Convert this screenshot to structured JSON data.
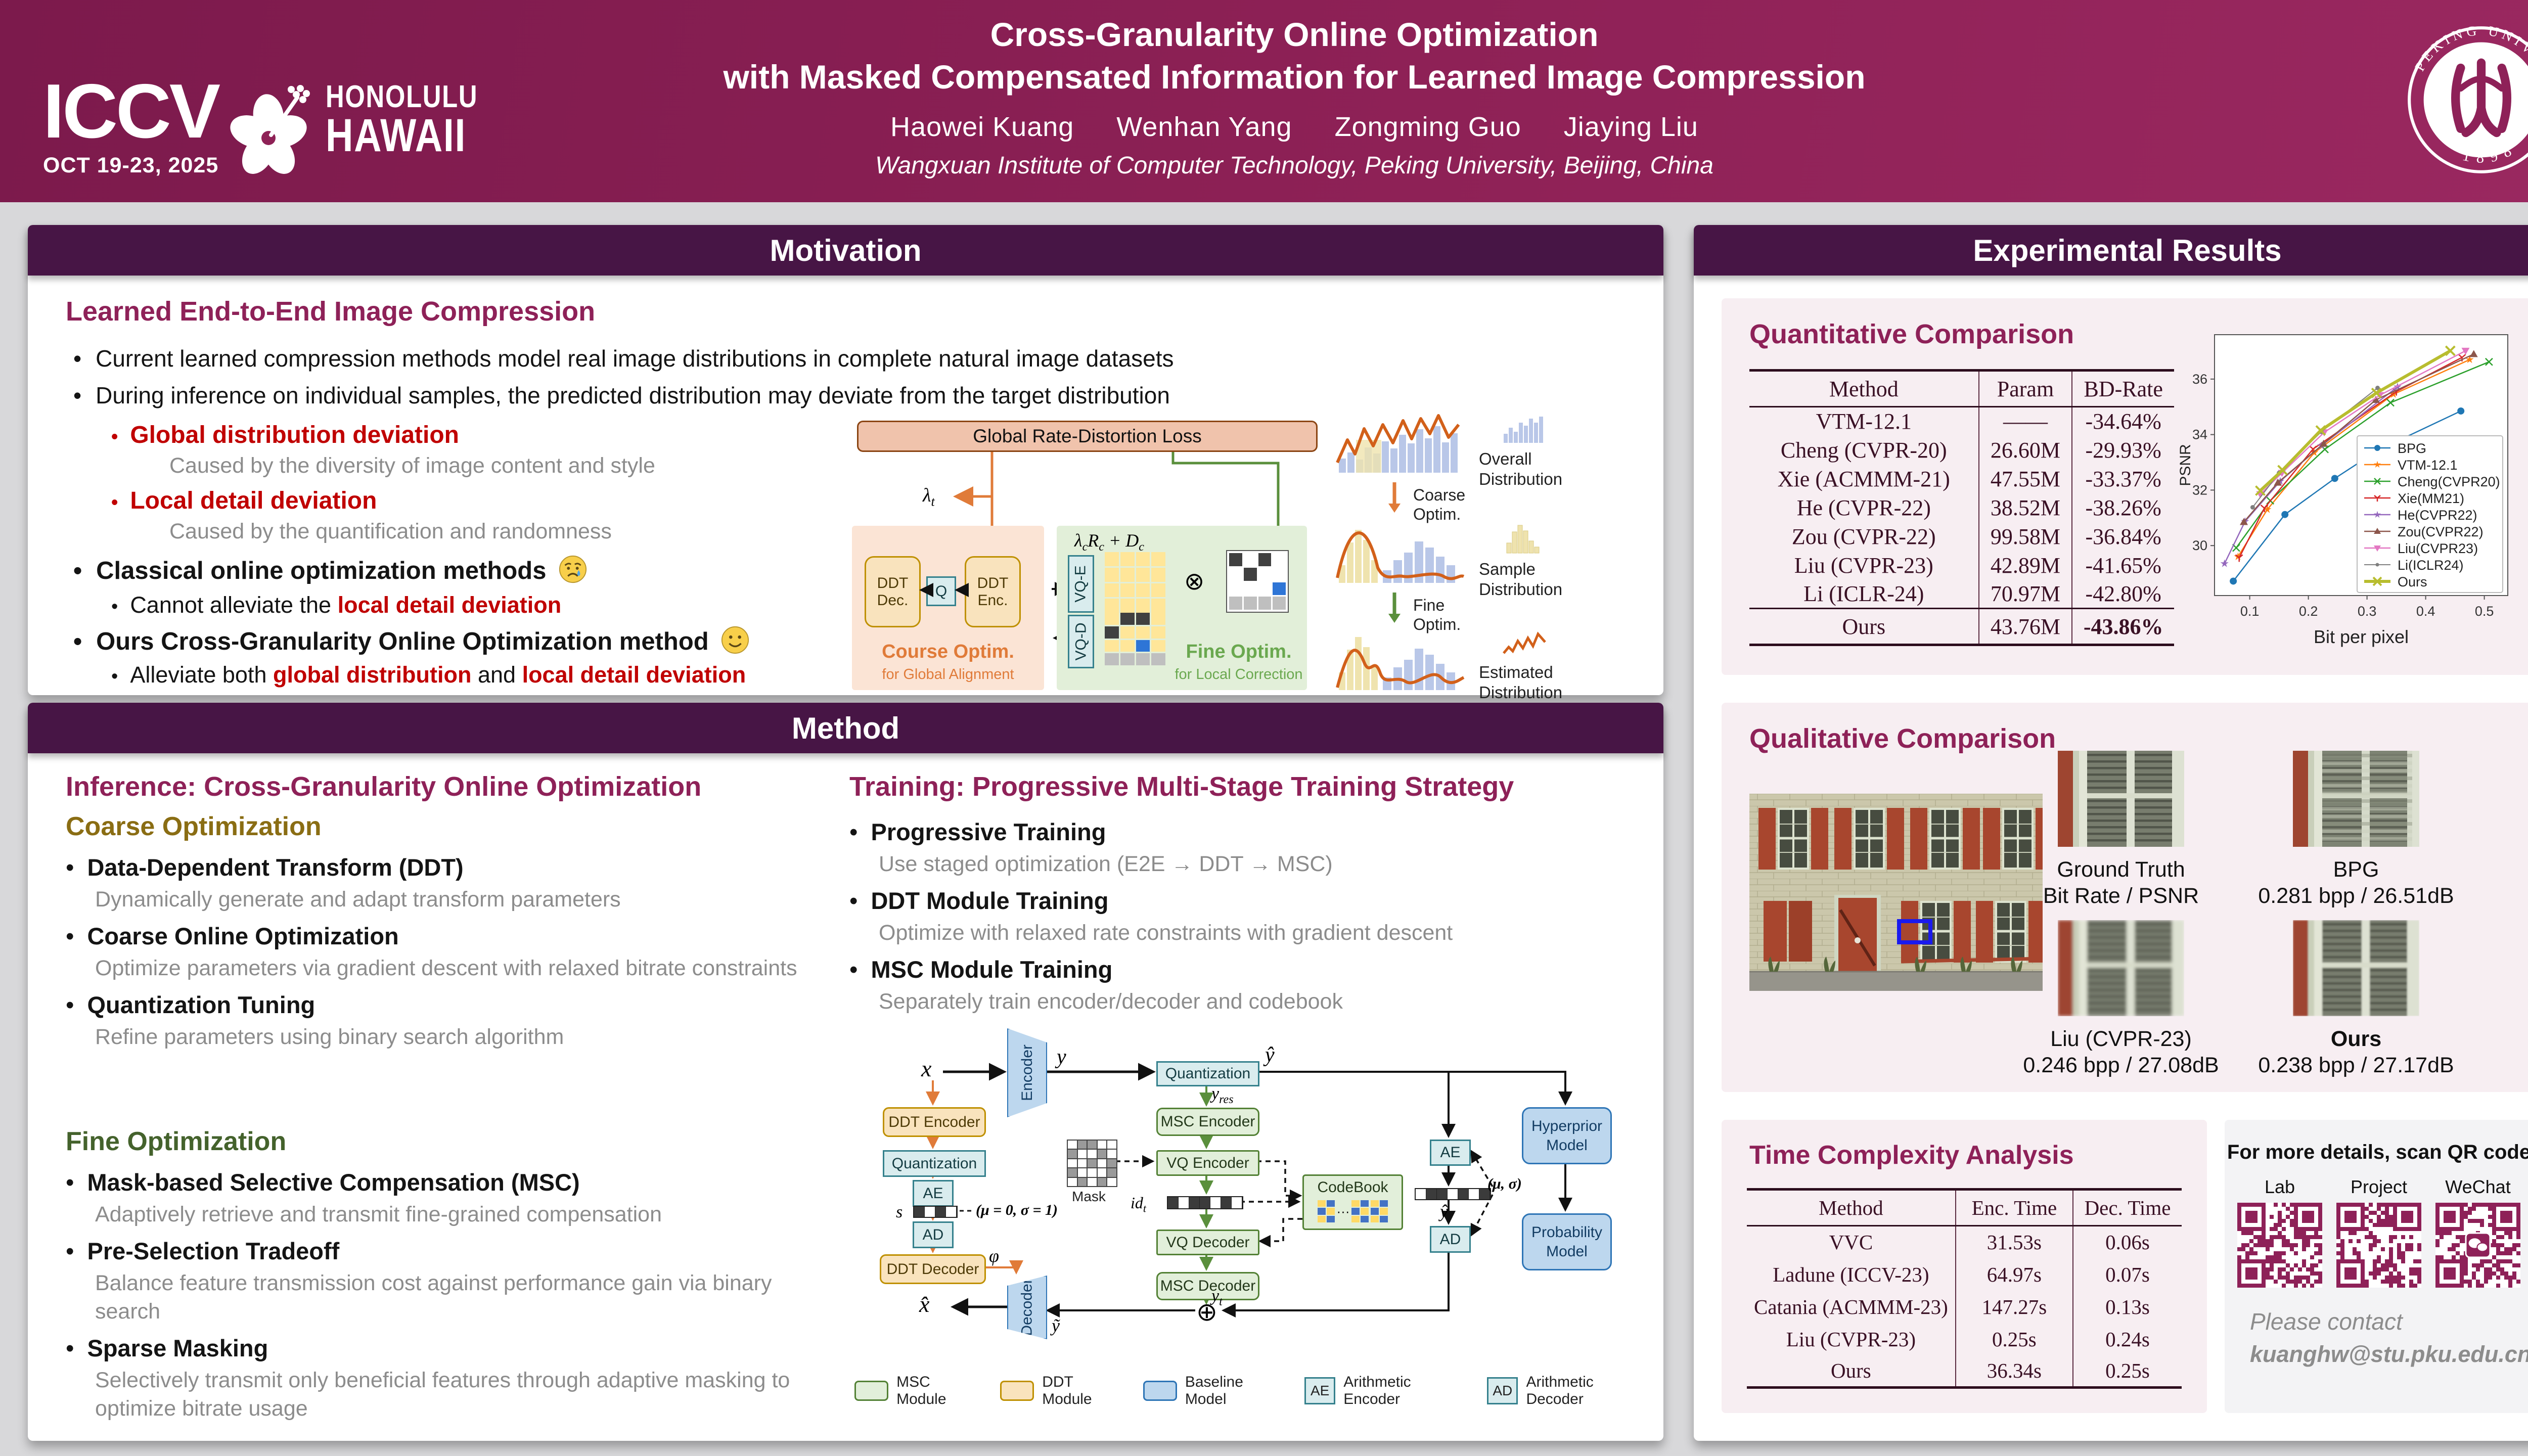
{
  "colors": {
    "accent": "#8e2158",
    "section_header": "#471545",
    "red": "#c00000",
    "olive": "#8a6d13",
    "green": "#44622c",
    "card_pink": "#f7eef2"
  },
  "header": {
    "title_line1": "Cross-Granularity Online Optimization",
    "title_line2": "with Masked Compensated Information for Learned Image Compression",
    "authors": [
      "Haowei Kuang",
      "Wenhan Yang",
      "Zongming Guo",
      "Jiaying Liu"
    ],
    "affiliation": "Wangxuan Institute of Computer Technology, Peking University, Beijing, China",
    "iccv": {
      "name": "ICCV",
      "dates": "OCT 19-23, 2025",
      "city1": "HONOLULU",
      "city2": "HAWAII"
    },
    "pku": {
      "ring_text": "PEKING UNIVERSITY",
      "year": "1898"
    }
  },
  "motivation": {
    "header": "Motivation",
    "section_title": "Learned End-to-End Image Compression",
    "b1": "Current learned compression methods model real image distributions in complete natural image datasets",
    "b2": "During inference on individual samples, the predicted distribution may deviate from the target distribution",
    "global_dev": {
      "title": "Global distribution deviation",
      "sub": "Caused by the diversity of image content and style"
    },
    "local_dev": {
      "title": "Local detail deviation",
      "sub": "Caused by the quantification and randomness"
    },
    "classical": {
      "title": "Classical online optimization methods",
      "sub_pre": "Cannot alleviate the ",
      "sub_red": "local detail deviation"
    },
    "ours": {
      "title": "Ours Cross-Granularity Online Optimization method",
      "sub_pre": "Alleviate both ",
      "sub_red1": "global distribution",
      "sub_mid": " and ",
      "sub_red2": "local detail deviation"
    },
    "diagram": {
      "loss": "Global Rate-Distortion Loss",
      "lambda_base": "λ",
      "lambda_sub": "t",
      "f_l1": "λ",
      "f_s1": "c",
      "f_l2": "R",
      "f_s2": "c",
      "f_mid": " + ",
      "f_l3": "D",
      "f_s3": "c",
      "ddt_dec": "DDT Dec.",
      "q": "Q",
      "ddt_enc": "DDT Enc.",
      "vqe": "VQ-E",
      "vqd": "VQ-D",
      "coarse_label": "Course Optim.",
      "coarse_sub": "for Global Alignment",
      "fine_label": "Fine Optim.",
      "fine_sub": "for Local Correction",
      "flow_overall": "Overall Distribution",
      "flow_coarse": "Coarse Optim.",
      "flow_sample": "Sample Distribution",
      "flow_fine": "Fine Optim.",
      "flow_estimated": "Estimated Distribution"
    }
  },
  "method": {
    "header": "Method",
    "inference": {
      "title": "Inference: Cross-Granularity Online Optimization",
      "coarse": {
        "title": "Coarse Optimization",
        "items": [
          {
            "b": "Data-Dependent Transform (DDT)",
            "s": "Dynamically generate and adapt transform parameters"
          },
          {
            "b": "Coarse Online Optimization",
            "s": "Optimize parameters via gradient descent with relaxed bitrate constraints"
          },
          {
            "b": "Quantization Tuning",
            "s": "Refine parameters using binary search algorithm"
          }
        ]
      },
      "fine": {
        "title": "Fine Optimization",
        "items": [
          {
            "b": "Mask-based Selective Compensation (MSC)",
            "s": "Adaptively retrieve and transmit fine-grained compensation"
          },
          {
            "b": "Pre-Selection Tradeoff",
            "s": "Balance feature transmission cost against performance gain via binary search"
          },
          {
            "b": "Sparse Masking",
            "s": "Selectively transmit only beneficial features through adaptive masking to optimize bitrate usage"
          }
        ]
      }
    },
    "training": {
      "title": "Training: Progressive Multi-Stage Training Strategy",
      "items": [
        {
          "b": "Progressive Training",
          "s": "Use staged optimization (E2E → DDT → MSC)"
        },
        {
          "b": "DDT Module Training",
          "s": "Optimize with relaxed rate constraints with gradient descent"
        },
        {
          "b": "MSC Module Training",
          "s": "Separately train encoder/decoder and codebook"
        }
      ],
      "diagram": {
        "x": "x",
        "y": "y",
        "yhat": "ŷ",
        "yres_base": "y",
        "yres_sub": "res",
        "encoder": "Encoder",
        "decoder": "Decoder",
        "quantization": "Quantization",
        "quantization2": "Quantization",
        "msc_enc": "MSC Encoder",
        "vq_enc": "VQ Encoder",
        "vq_dec": "VQ Decoder",
        "msc_dec": "MSC Decoder",
        "mask": "Mask",
        "id_base": "id",
        "id_sub": "t",
        "codebook": "CodeBook",
        "ddt_enc": "DDT Encoder",
        "ddt_dec": "DDT Decoder",
        "ae": "AE",
        "ad": "AD",
        "mu_sigma01": "(μ = 0, σ = 1)",
        "s": "s",
        "phi": "φ",
        "hyperprior": "Hyperprior Model",
        "probability": "Probability Model",
        "mu_sigma": "(μ, σ)",
        "yt_base": "y",
        "yt_sub": "t",
        "ytilde": "ỹ",
        "xhat": "x̂",
        "yhat2": "ŷ"
      },
      "legend": [
        {
          "swatch": "msc",
          "label": "MSC Module"
        },
        {
          "swatch": "ddt",
          "label": "DDT Module"
        },
        {
          "swatch": "base",
          "label": "Baseline Model"
        },
        {
          "swatch": "ae",
          "box": "AE",
          "label": "Arithmetic Encoder"
        },
        {
          "swatch": "ad",
          "box": "AD",
          "label": "Arithmetic Decoder"
        }
      ]
    }
  },
  "results": {
    "header": "Experimental Results",
    "quantitative": {
      "title": "Quantitative Comparison",
      "headers": [
        "Method",
        "Param",
        "BD-Rate"
      ],
      "rows": [
        [
          "VTM-12.1",
          "——",
          "-34.64%"
        ],
        [
          "Cheng (CVPR-20)",
          "26.60M",
          "-29.93%"
        ],
        [
          "Xie (ACMMM-21)",
          "47.55M",
          "-33.37%"
        ],
        [
          "He (CVPR-22)",
          "38.52M",
          "-38.26%"
        ],
        [
          "Zou (CVPR-22)",
          "99.58M",
          "-36.84%"
        ],
        [
          "Liu (CVPR-23)",
          "42.89M",
          "-41.65%"
        ],
        [
          "Li (ICLR-24)",
          "70.97M",
          "-42.80%"
        ]
      ],
      "footer": [
        "Ours",
        "43.76M",
        "-43.86%"
      ]
    },
    "qualitative": {
      "title": "Qualitative Comparison",
      "items": [
        {
          "name": "Ground Truth",
          "metric": "Bit Rate / PSNR",
          "bold": false,
          "variant": "gt"
        },
        {
          "name": "BPG",
          "metric": "0.281 bpp / 26.51dB",
          "bold": false,
          "variant": "bpg"
        },
        {
          "name": "Liu (CVPR-23)",
          "metric": "0.246 bpp / 27.08dB",
          "bold": false,
          "variant": "liu"
        },
        {
          "name": "Ours",
          "metric": "0.238 bpp / 27.17dB",
          "bold": true,
          "variant": "ours"
        }
      ]
    },
    "time": {
      "title": "Time Complexity Analysis",
      "headers": [
        "Method",
        "Enc. Time",
        "Dec. Time"
      ],
      "rows": [
        [
          "VVC",
          "31.53s",
          "0.06s"
        ],
        [
          "Ladune (ICCV-23)",
          "64.97s",
          "0.07s"
        ],
        [
          "Catania (ACMMM-23)",
          "147.27s",
          "0.13s"
        ],
        [
          "Liu (CVPR-23)",
          "0.25s",
          "0.24s"
        ],
        [
          "Ours",
          "36.34s",
          "0.25s"
        ]
      ]
    },
    "qr": {
      "title": "For more details, scan QR code",
      "labels": [
        "Lab",
        "Project",
        "WeChat"
      ],
      "contact1": "Please contact",
      "contact2": "kuanghw@stu.pku.edu.cn"
    }
  },
  "chart_data": {
    "type": "line",
    "title": "",
    "xlabel": "Bit per pixel",
    "ylabel": "PSNR",
    "xlim": [
      0.04,
      0.54
    ],
    "ylim": [
      28.2,
      37.6
    ],
    "xticks": [
      0.1,
      0.2,
      0.3,
      0.4,
      0.5
    ],
    "yticks": [
      30,
      32,
      34,
      36
    ],
    "grid": false,
    "legend_position": "lower right",
    "series": [
      {
        "name": "BPG",
        "color": "#1f77b4",
        "marker": "circle",
        "w": 2.5,
        "x": [
          0.072,
          0.16,
          0.245,
          0.32,
          0.46
        ],
        "y": [
          28.72,
          31.12,
          32.42,
          33.45,
          34.85
        ]
      },
      {
        "name": "VTM-12.1",
        "color": "#ff7f0e",
        "marker": "star",
        "w": 2.5,
        "x": [
          0.08,
          0.13,
          0.21,
          0.345,
          0.475
        ],
        "y": [
          29.6,
          31.3,
          33.35,
          35.45,
          36.7
        ]
      },
      {
        "name": "Cheng(CVPR20)",
        "color": "#2ca02c",
        "marker": "x",
        "w": 2.5,
        "x": [
          0.077,
          0.135,
          0.228,
          0.34,
          0.508
        ],
        "y": [
          29.92,
          31.62,
          33.47,
          35.15,
          36.62
        ]
      },
      {
        "name": "Xie(MM21)",
        "color": "#d62728",
        "marker": "y",
        "w": 2.5,
        "x": [
          0.082,
          0.125,
          0.208,
          0.35,
          0.462
        ],
        "y": [
          29.56,
          31.35,
          33.48,
          35.55,
          36.78
        ]
      },
      {
        "name": "He(CVPR22)",
        "color": "#9467bd",
        "marker": "star",
        "w": 2.5,
        "x": [
          0.057,
          0.092,
          0.152,
          0.222,
          0.352
        ],
        "y": [
          29.35,
          30.87,
          32.32,
          33.6,
          35.72
        ]
      },
      {
        "name": "Zou(CVPR22)",
        "color": "#8c564b",
        "marker": "tri-up",
        "w": 2.5,
        "x": [
          0.09,
          0.148,
          0.226,
          0.315,
          0.482
        ],
        "y": [
          30.85,
          32.27,
          33.67,
          35.25,
          36.9
        ]
      },
      {
        "name": "Liu(CVPR23)",
        "color": "#e377c2",
        "marker": "tri-down",
        "w": 2.5,
        "x": [
          0.118,
          0.155,
          0.227,
          0.322,
          0.468
        ],
        "y": [
          31.85,
          32.62,
          34.08,
          35.42,
          37.02
        ]
      },
      {
        "name": "Li(ICLR24)",
        "color": "#7f7f7f",
        "marker": "dot",
        "w": 2,
        "x": [
          0.105,
          0.15,
          0.222,
          0.318
        ],
        "y": [
          31.38,
          32.62,
          34.1,
          35.68
        ]
      },
      {
        "name": "Ours",
        "color": "#b8bd2f",
        "marker": "X",
        "w": 6,
        "x": [
          0.118,
          0.156,
          0.221,
          0.316,
          0.442
        ],
        "y": [
          31.98,
          32.72,
          34.15,
          35.5,
          37.02
        ]
      }
    ]
  }
}
